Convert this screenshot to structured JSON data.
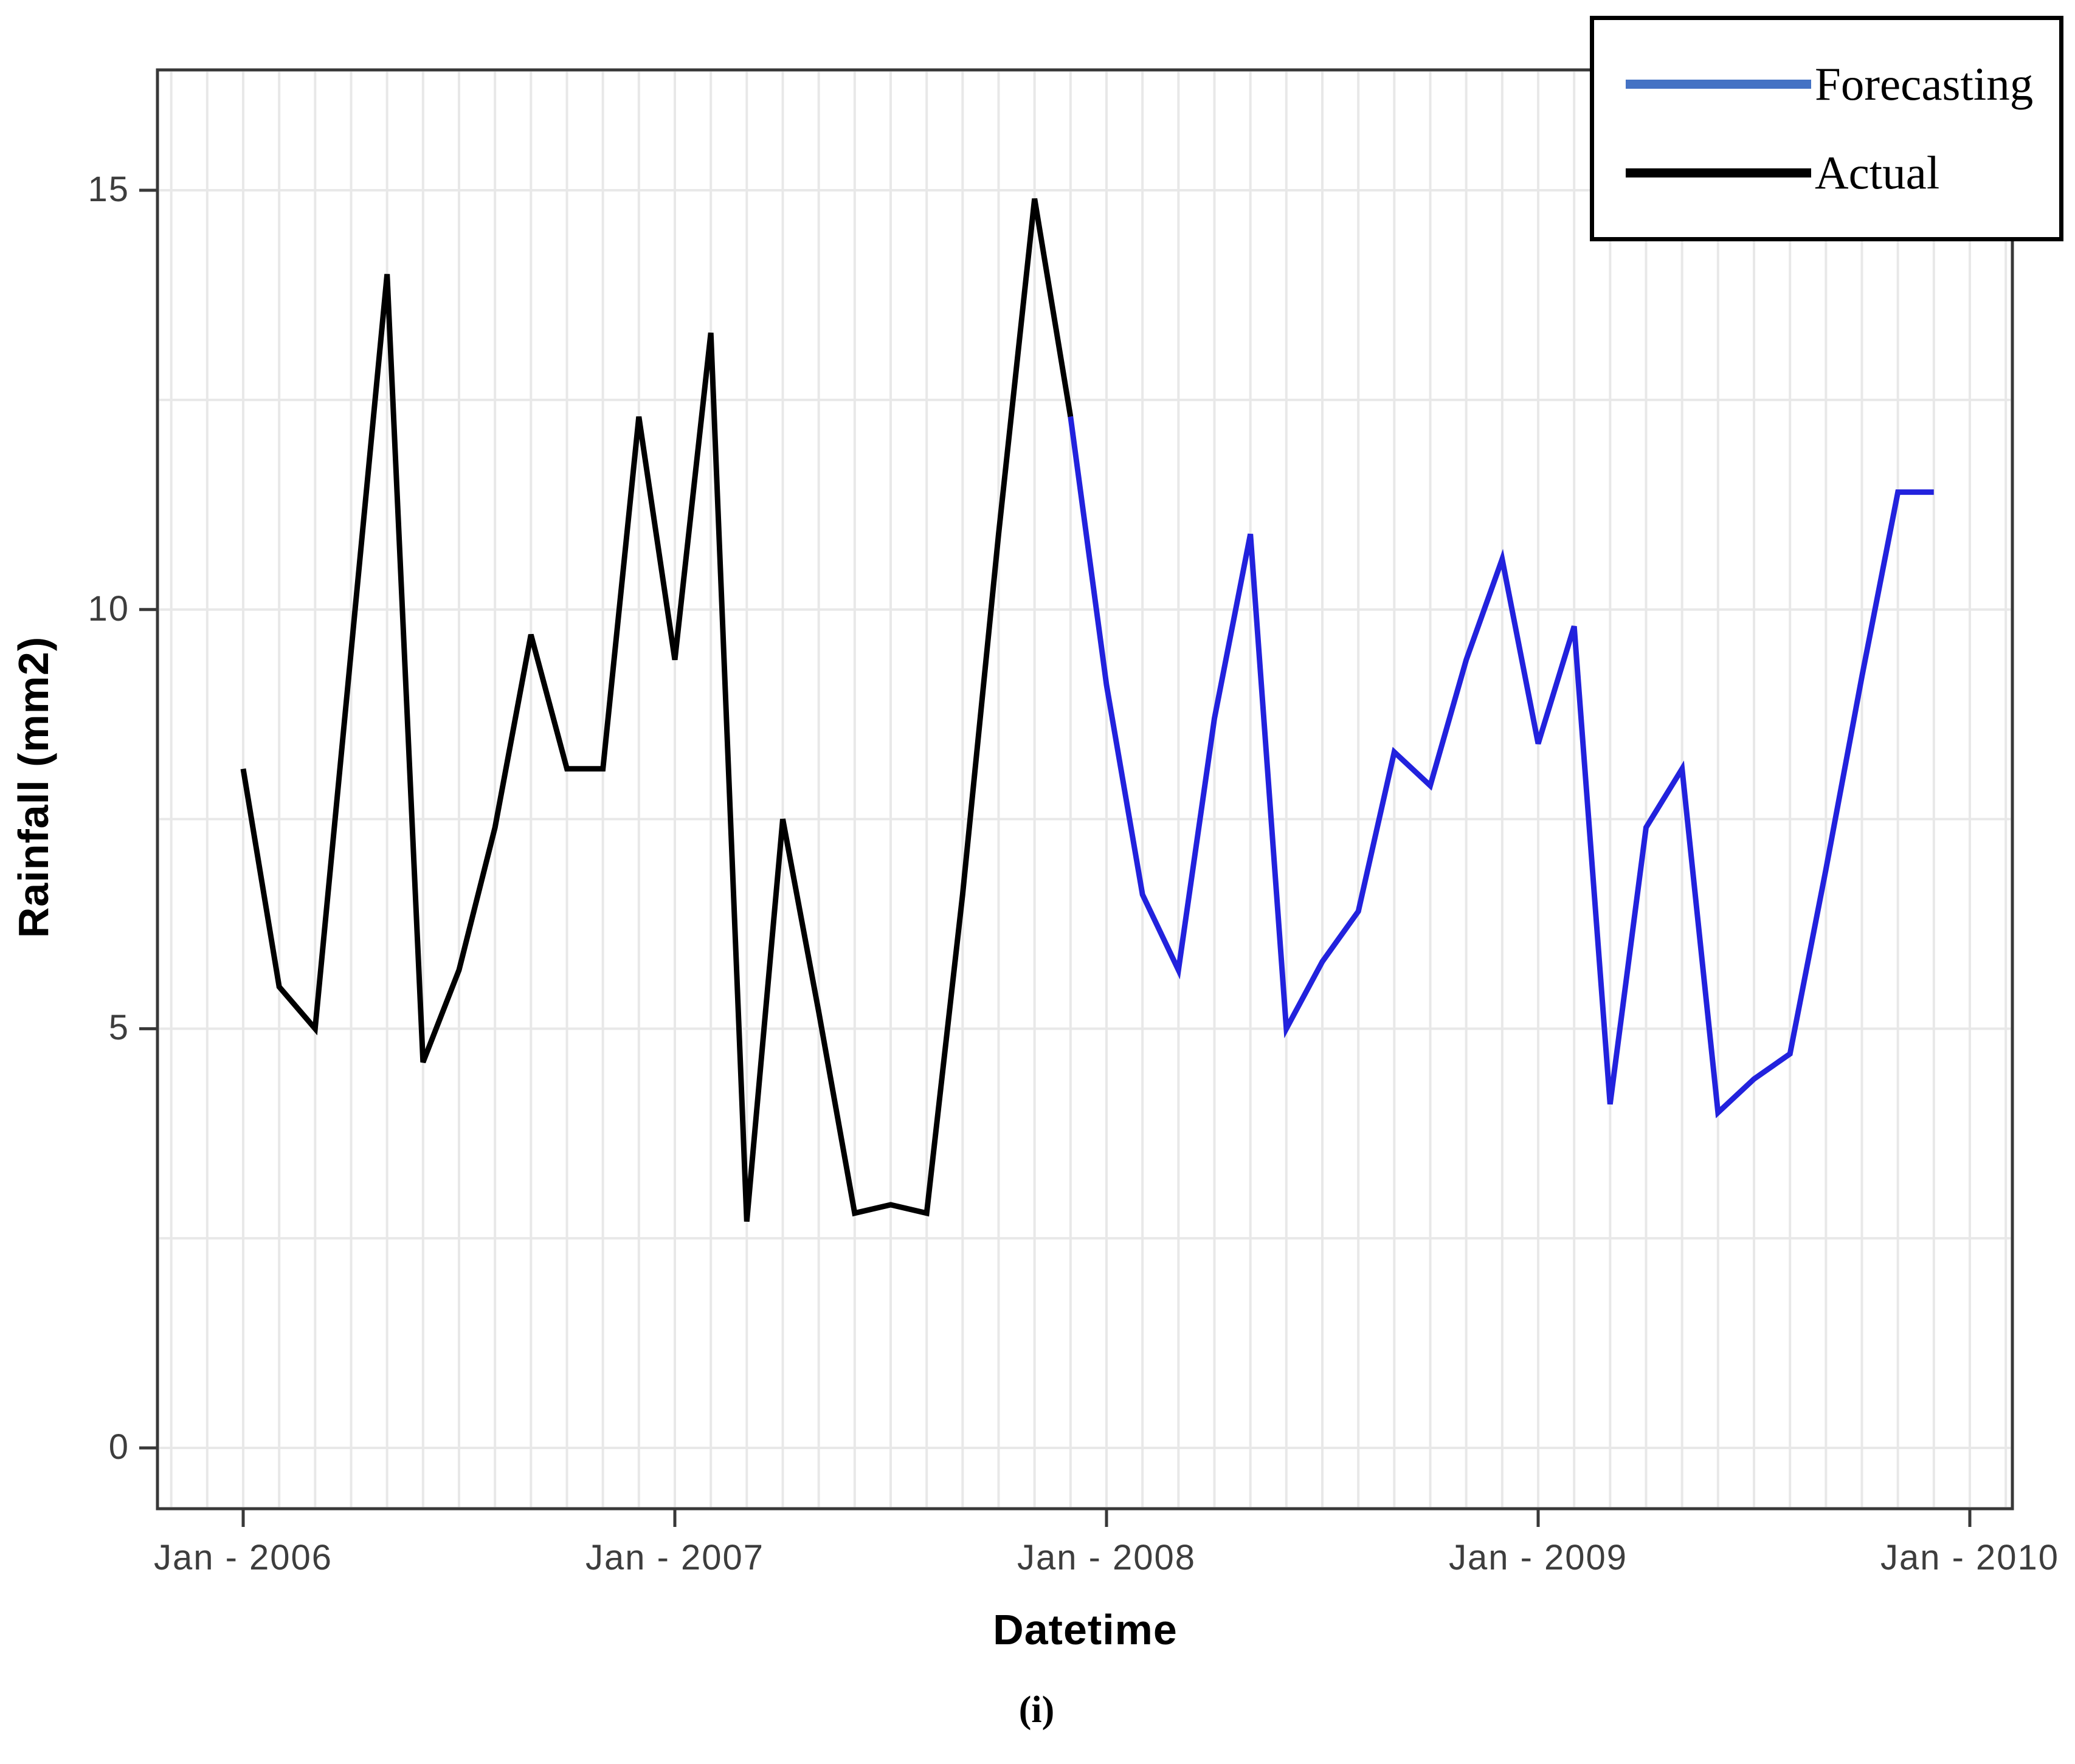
{
  "page": {
    "background": "#ffffff"
  },
  "axes": {
    "x_title": "Datetime",
    "y_title": "Rainfall (mm2)",
    "x_tick_labels": [
      "Jan - 2006",
      "Jan - 2007",
      "Jan - 2008",
      "Jan - 2009",
      "Jan - 2010"
    ],
    "y_tick_labels": [
      "0",
      "5",
      "10",
      "15"
    ]
  },
  "legend": {
    "entries": [
      {
        "label": "Forecasting",
        "color": "#4472C4"
      },
      {
        "label": "Actual",
        "color": "#000000"
      }
    ]
  },
  "caption": "(i)",
  "colors": {
    "grid": "#e8e8e8",
    "plot_border": "#383838",
    "tick": "#383838",
    "actual_line": "#000000",
    "forecast_line": "#2222dd"
  },
  "chart_data": {
    "type": "line",
    "title": "",
    "xlabel": "Datetime",
    "ylabel": "Rainfall (mm2)",
    "x_unit": "month",
    "x_start_label": "Jan 2006",
    "x_months_count": 48,
    "x_tick_positions_months": [
      0,
      12,
      24,
      36,
      48
    ],
    "x_tick_labels": [
      "Jan - 2006",
      "Jan - 2007",
      "Jan - 2008",
      "Jan - 2009",
      "Jan - 2010"
    ],
    "y_ticks": [
      0,
      5,
      10,
      15
    ],
    "y_gridline_step": 2.5,
    "ylim": [
      -0.75,
      16.45
    ],
    "xlim_months": [
      -2.4,
      49.3
    ],
    "grid": true,
    "legend_position": "top-right",
    "series": [
      {
        "name": "Actual",
        "color": "#000000",
        "start_month_index": 0,
        "start_label": "Jan 2006",
        "end_label": "Dec 2007",
        "values": [
          8.1,
          5.5,
          5.0,
          9.5,
          14.0,
          4.6,
          5.7,
          7.4,
          9.7,
          8.1,
          8.1,
          12.3,
          9.4,
          13.3,
          2.7,
          7.5,
          5.2,
          2.8,
          2.9,
          2.8,
          6.6,
          10.9,
          14.9,
          12.3
        ]
      },
      {
        "name": "Forecasting",
        "color": "#2222dd",
        "start_month_index": 23,
        "start_label": "Dec 2007",
        "end_label": "Dec 2009",
        "values": [
          12.3,
          9.1,
          6.6,
          5.7,
          8.7,
          10.9,
          5.0,
          5.8,
          6.4,
          8.3,
          7.9,
          9.4,
          10.6,
          8.4,
          9.8,
          4.1,
          7.4,
          8.1,
          4.0,
          4.4,
          4.7,
          6.9,
          9.2,
          11.4,
          11.4
        ]
      }
    ]
  }
}
